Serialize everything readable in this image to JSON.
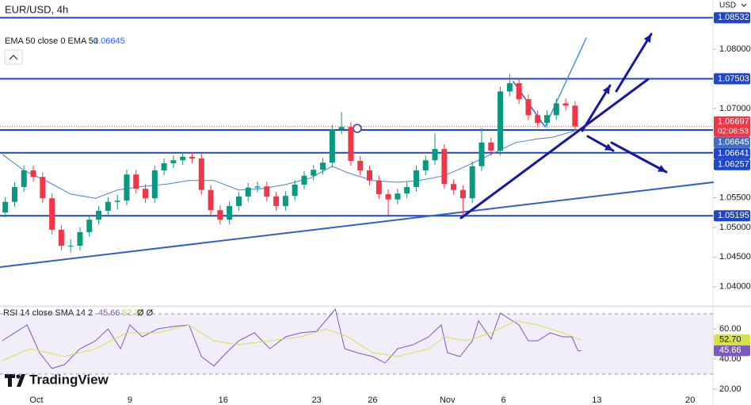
{
  "brand": "TradingView",
  "currency": "USD",
  "chart_data": [
    {
      "type": "candlestick",
      "title": "EUR/USD, 4h",
      "up_color": "#089981",
      "down_color": "#f23645",
      "x": [
        -10,
        -7,
        -4,
        -1,
        2,
        5,
        8,
        11,
        14,
        17,
        20,
        23,
        26,
        29,
        32,
        35,
        38,
        41,
        44,
        47,
        50,
        53,
        56,
        59,
        62,
        65,
        68,
        71,
        74,
        77,
        80,
        83,
        86,
        89,
        92,
        95,
        98,
        101,
        104,
        107,
        110,
        113,
        116,
        119,
        122,
        125,
        128,
        131,
        134,
        137,
        140,
        143,
        146,
        149,
        152,
        155,
        158,
        161,
        164,
        167,
        170,
        173
      ],
      "open": [
        1.0525,
        1.0543,
        1.0568,
        1.0596,
        1.0585,
        1.0549,
        1.0496,
        1.0469,
        1.0469,
        1.0492,
        1.0513,
        1.0528,
        1.0543,
        1.0545,
        1.0589,
        1.0565,
        1.0549,
        1.0596,
        1.0608,
        1.0613,
        1.0619,
        1.0616,
        1.0563,
        1.0529,
        1.0513,
        1.0536,
        1.0552,
        1.0567,
        1.0569,
        1.0552,
        1.0536,
        1.0553,
        1.0572,
        1.0587,
        1.0597,
        1.0609,
        1.0665,
        1.0669,
        1.0612,
        1.0596,
        1.0579,
        1.0556,
        1.0547,
        1.0557,
        1.0568,
        1.0596,
        1.0613,
        1.0632,
        1.0573,
        1.0563,
        1.0549,
        1.0603,
        1.0643,
        1.0629,
        1.0729,
        1.0743,
        1.0716,
        1.0689,
        1.0676,
        1.0689,
        1.0709,
        1.0705
      ],
      "high": [
        1.0551,
        1.0576,
        1.0604,
        1.0604,
        1.0593,
        1.0557,
        1.0504,
        1.048,
        1.05,
        1.0521,
        1.0536,
        1.0551,
        1.0555,
        1.0597,
        1.0597,
        1.0573,
        1.0604,
        1.0616,
        1.0621,
        1.0627,
        1.0627,
        1.0624,
        1.0571,
        1.0537,
        1.0544,
        1.056,
        1.0575,
        1.0577,
        1.0577,
        1.056,
        1.0561,
        1.058,
        1.0595,
        1.0605,
        1.0617,
        1.0673,
        1.0694,
        1.0677,
        1.062,
        1.0604,
        1.0587,
        1.0564,
        1.0565,
        1.0576,
        1.0604,
        1.0621,
        1.0658,
        1.064,
        1.0581,
        1.0571,
        1.0611,
        1.0668,
        1.0651,
        1.0737,
        1.0758,
        1.0751,
        1.0724,
        1.0697,
        1.0697,
        1.0717,
        1.0717,
        1.0713
      ],
      "low": [
        1.0517,
        1.0535,
        1.056,
        1.0577,
        1.0541,
        1.0488,
        1.0461,
        1.0458,
        1.0461,
        1.0484,
        1.0505,
        1.052,
        1.053,
        1.0537,
        1.0557,
        1.0541,
        1.0541,
        1.0588,
        1.06,
        1.0605,
        1.0608,
        1.0555,
        1.0521,
        1.0505,
        1.0505,
        1.0528,
        1.0544,
        1.0559,
        1.0544,
        1.0528,
        1.0528,
        1.0545,
        1.0564,
        1.0579,
        1.0589,
        1.0601,
        1.0657,
        1.0604,
        1.0588,
        1.0571,
        1.0548,
        1.052,
        1.0539,
        1.0549,
        1.056,
        1.0588,
        1.0605,
        1.0565,
        1.0555,
        1.052,
        1.0541,
        1.0595,
        1.0621,
        1.0621,
        1.0721,
        1.0708,
        1.0681,
        1.0668,
        1.0668,
        1.0681,
        1.0697,
        1.0662
      ],
      "close": [
        1.0543,
        1.0568,
        1.0596,
        1.0585,
        1.0549,
        1.0496,
        1.0469,
        1.0469,
        1.0492,
        1.0513,
        1.0528,
        1.0543,
        1.0545,
        1.0589,
        1.0565,
        1.0549,
        1.0596,
        1.0608,
        1.0613,
        1.0619,
        1.0616,
        1.0563,
        1.0529,
        1.0513,
        1.0536,
        1.0552,
        1.0567,
        1.0569,
        1.0552,
        1.0536,
        1.0553,
        1.0572,
        1.0587,
        1.0597,
        1.0609,
        1.0665,
        1.0669,
        1.0612,
        1.0596,
        1.0579,
        1.0556,
        1.0547,
        1.0557,
        1.0568,
        1.0596,
        1.0613,
        1.0632,
        1.0573,
        1.0563,
        1.0549,
        1.0603,
        1.0643,
        1.0629,
        1.0729,
        1.0743,
        1.0716,
        1.0689,
        1.0676,
        1.0689,
        1.0709,
        1.0705,
        1.067
      ],
      "last_price": 1.06697,
      "countdown": "02:06:53",
      "overlay": {
        "name": "EMA 50 close 0 EMA 50",
        "color": "#4a7fd4",
        "x": [
          -11,
          -4,
          4,
          11,
          19,
          26,
          34,
          42,
          49,
          57,
          65,
          72,
          80,
          88,
          95,
          100,
          108,
          116,
          123,
          131,
          138,
          146,
          154,
          161,
          166,
          174
        ],
        "values": [
          1.0623,
          1.0596,
          1.0576,
          1.0556,
          1.0549,
          1.0563,
          1.0569,
          1.0573,
          1.0579,
          1.0579,
          1.0563,
          1.0565,
          1.0572,
          1.0583,
          1.0603,
          1.0592,
          1.0579,
          1.0576,
          1.0579,
          1.0587,
          1.0603,
          1.0623,
          1.0643,
          1.0649,
          1.0652,
          1.06645
        ]
      },
      "levels": {
        "color": "#1f45c8",
        "values": [
          1.08532,
          1.07503,
          1.06641,
          1.06257,
          1.05195
        ]
      },
      "xlim": [
        -11.7,
        217.3
      ],
      "xticks": [
        {
          "value": 0,
          "label": "Oct"
        },
        {
          "value": 30,
          "label": "9"
        },
        {
          "value": 60,
          "label": "16"
        },
        {
          "value": 90,
          "label": "23"
        },
        {
          "value": 108,
          "label": "26"
        },
        {
          "value": 132,
          "label": "Nov"
        },
        {
          "value": 150,
          "label": "6"
        },
        {
          "value": 180,
          "label": "13"
        },
        {
          "value": 210,
          "label": "20"
        }
      ],
      "ylim": [
        1.0369,
        1.0883
      ],
      "yticks": [
        {
          "value": 1.08,
          "label": "1.08000"
        },
        {
          "value": 1.07,
          "label": "1.07000"
        },
        {
          "value": 1.055,
          "label": "1.05500"
        },
        {
          "value": 1.05,
          "label": "1.05000"
        },
        {
          "value": 1.045,
          "label": "1.04500"
        },
        {
          "value": 1.04,
          "label": "1.04000"
        }
      ],
      "grid": false
    },
    {
      "type": "line",
      "title": "RSI 14 close SMA 14 2",
      "flags": "Ø Ø",
      "series": [
        {
          "color": "#7e57c2",
          "x": [
            -11,
            -7,
            -3,
            1,
            5,
            9,
            14,
            19,
            23,
            27,
            30,
            34,
            39,
            44,
            49,
            53,
            57,
            61,
            65,
            70,
            75,
            80,
            85,
            90,
            95,
            96,
            99,
            103,
            108,
            112,
            116,
            121,
            126,
            130,
            132,
            136,
            140,
            142,
            146,
            149,
            151,
            155,
            158,
            161,
            165,
            169,
            172,
            174,
            175
          ],
          "values": [
            52.1,
            57.4,
            62.6,
            44.2,
            33.7,
            36.3,
            46.8,
            52.1,
            60,
            46.8,
            62.6,
            54.7,
            60,
            61.6,
            62.6,
            41.6,
            35.3,
            44.2,
            52.1,
            57.4,
            46.8,
            54.7,
            57.4,
            58.4,
            70.5,
            73.2,
            46.8,
            44.2,
            41.6,
            37.4,
            46.8,
            49.5,
            54.7,
            62.6,
            44.2,
            41.6,
            52.1,
            65.3,
            53.2,
            70.5,
            67.9,
            62.6,
            52.1,
            52.1,
            57.4,
            54.7,
            54.7,
            45.3,
            45.66
          ]
        },
        {
          "color": "#d8e04a",
          "x": [
            -11,
            -2,
            9,
            19,
            29,
            39,
            49,
            57,
            65,
            75,
            85,
            93,
            100,
            108,
            116,
            126,
            131,
            138,
            146,
            154,
            161,
            169,
            175
          ],
          "values": [
            38.9,
            46.8,
            41.6,
            46.8,
            57.4,
            57.4,
            62.6,
            52.1,
            49.5,
            52.1,
            54.7,
            60,
            54.7,
            44.2,
            41.6,
            46.8,
            54.7,
            52.1,
            57.4,
            65.3,
            62.6,
            57.4,
            52.7
          ],
          "last_label": "52.70"
        }
      ],
      "band": [
        30,
        70
      ],
      "xlim": [
        -11.7,
        217.3
      ],
      "ylim": [
        12.6,
        74.2
      ],
      "yticks": [
        {
          "value": 60,
          "label": "60.00"
        },
        {
          "value": 40,
          "label": "40.00"
        },
        {
          "value": 20,
          "label": "20.00"
        }
      ]
    }
  ]
}
